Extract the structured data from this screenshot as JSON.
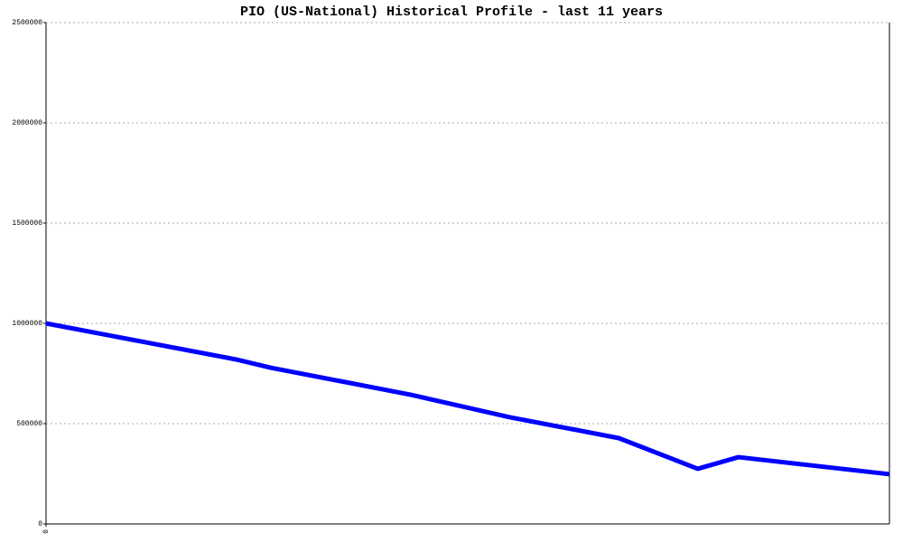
{
  "chart_data": {
    "type": "line",
    "title": "PIO (US-National) Historical Profile - last 11 years",
    "x": [
      0,
      2.48,
      2.93,
      4.76,
      6.05,
      7.47,
      8.5,
      9.03,
      11
    ],
    "series": [
      {
        "name": "PIO",
        "color": "#0000ff",
        "values": [
          1000000,
          820000,
          779000,
          644000,
          532000,
          428000,
          275000,
          333000,
          248000
        ]
      }
    ],
    "xlim": [
      0,
      11
    ],
    "xticks": [
      0
    ],
    "ylim": [
      0,
      2500000
    ],
    "yticks": [
      0,
      500000,
      1000000,
      1500000,
      2000000,
      2500000
    ],
    "grid": true
  }
}
